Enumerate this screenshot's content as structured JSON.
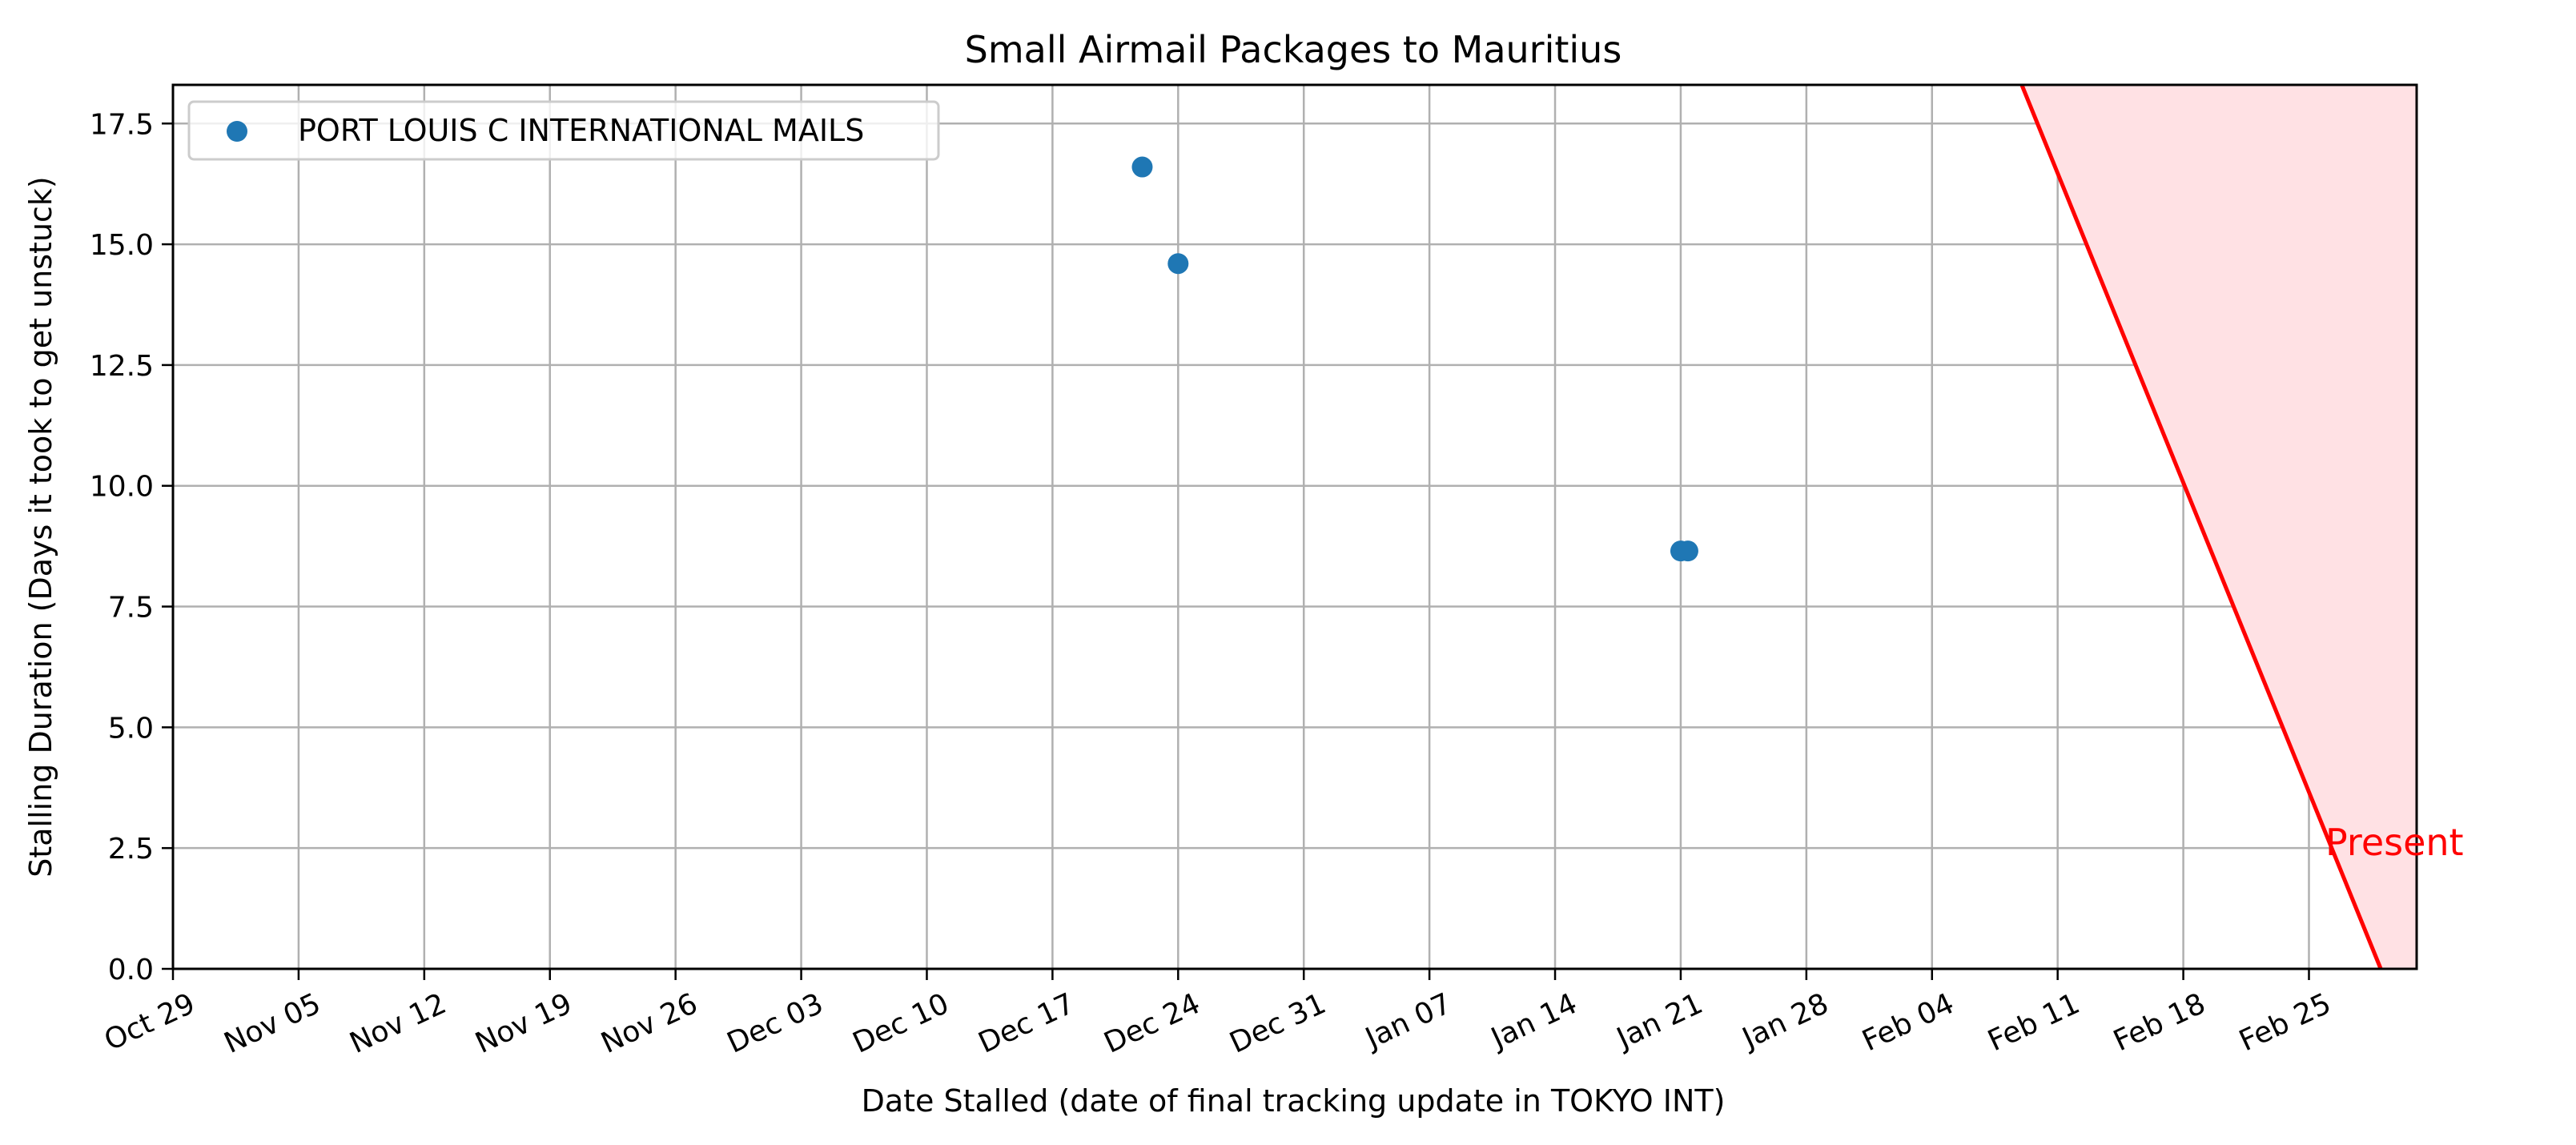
{
  "chart_data": {
    "type": "scatter",
    "title": "Small Airmail Packages to Mauritius",
    "xlabel": "Date Stalled (date of final tracking update in TOKYO INT)",
    "ylabel": "Stalling Duration (Days it took to get unstuck)",
    "xlim": [
      "2023-10-29",
      "2024-03-02"
    ],
    "ylim": [
      0,
      18.3
    ],
    "x_ticks": [
      "Oct 29",
      "Nov 05",
      "Nov 12",
      "Nov 19",
      "Nov 26",
      "Dec 03",
      "Dec 10",
      "Dec 17",
      "Dec 24",
      "Dec 31",
      "Jan 07",
      "Jan 14",
      "Jan 21",
      "Jan 28",
      "Feb 04",
      "Feb 11",
      "Feb 18",
      "Feb 25"
    ],
    "y_ticks": [
      "0.0",
      "2.5",
      "5.0",
      "7.5",
      "10.0",
      "12.5",
      "15.0",
      "17.5"
    ],
    "y_tick_values": [
      0,
      2.5,
      5,
      7.5,
      10,
      12.5,
      15,
      17.5
    ],
    "grid": true,
    "legend_position": "top-left",
    "series": [
      {
        "name": "PORT LOUIS C INTERNATIONAL MAILS",
        "color": "#1f77b4",
        "points": [
          {
            "x": "2023-12-22",
            "y": 16.6
          },
          {
            "x": "2023-12-24",
            "y": 14.6
          },
          {
            "x": "2024-01-21",
            "y": 8.65
          },
          {
            "x": "2024-01-21",
            "y": 8.65
          }
        ]
      }
    ],
    "present_line": {
      "label": "Present",
      "color": "#ff0000",
      "shade_color": "#ffe1e4",
      "start": {
        "x": "2024-02-09",
        "y": 18.3
      },
      "end": {
        "x": "2024-02-29",
        "y": 0
      }
    }
  }
}
